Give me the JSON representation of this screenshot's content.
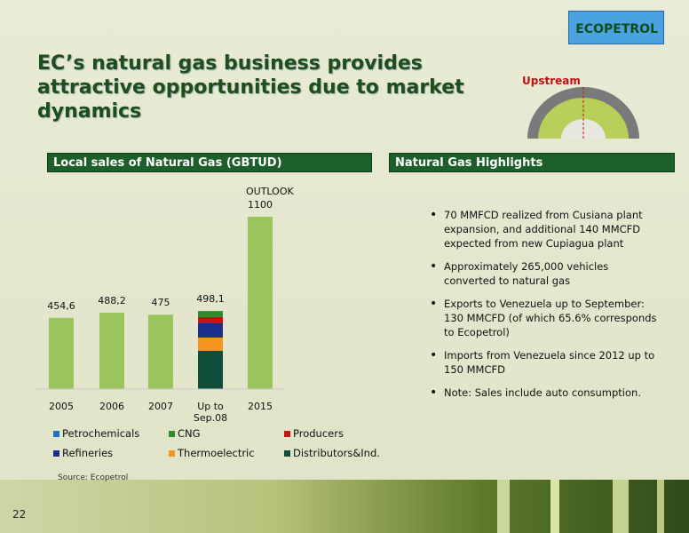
{
  "slide": {
    "title": "EC’s natural gas business provides attractive opportunities due to market dynamics",
    "logo": "ECOPETROL",
    "section": "Upstream",
    "page_number": "22",
    "source": "Source: Ecopetrol"
  },
  "highlights": {
    "header": "Natural Gas Highlights",
    "items": [
      "70 MMFCD realized from Cusiana plant expansion, and additional 140 MMCFD expected from new Cupiagua plant",
      "Approximately 265,000 vehicles converted to natural gas",
      "Exports to Venezuela up to September: 130 MMCFD (of which 65.6% corresponds to Ecopetrol)",
      "Imports from Venezuela since 2012 up to 150 MMCFD",
      "Note: Sales include auto consumption."
    ]
  },
  "chart_data": {
    "type": "bar",
    "title": "Local sales of Natural Gas (GBTUD)",
    "annotation": "OUTLOOK",
    "categories": [
      "2005",
      "2006",
      "2007",
      "Up to Sep.08",
      "2015"
    ],
    "values": [
      454.6,
      488.2,
      475,
      498.1,
      1100
    ],
    "value_labels": [
      "454,6",
      "488,2",
      "475",
      "498,1",
      "1100"
    ],
    "color": "#9ac45c",
    "ylim": [
      0,
      1100
    ],
    "series": [
      {
        "name": "Petrochemicals",
        "color": "#1a75bc",
        "values": [
          null,
          null,
          null,
          0,
          null
        ]
      },
      {
        "name": "CNG",
        "color": "#2e8b2e",
        "values": [
          null,
          null,
          null,
          38,
          null
        ]
      },
      {
        "name": "Producers",
        "color": "#cc1111",
        "values": [
          null,
          null,
          null,
          40,
          null
        ]
      },
      {
        "name": "Refineries",
        "color": "#1b2f8a",
        "values": [
          null,
          null,
          null,
          91,
          null
        ]
      },
      {
        "name": "Thermoelectric",
        "color": "#f7941d",
        "values": [
          null,
          null,
          null,
          85,
          null
        ]
      },
      {
        "name": "Distributors&Ind.",
        "color": "#0f4d3a",
        "values": [
          null,
          null,
          null,
          244,
          null
        ]
      }
    ]
  }
}
